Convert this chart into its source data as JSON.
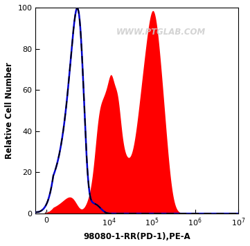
{
  "xlabel": "98080-1-RR(PD-1),PE-A",
  "ylabel": "Relative Cell Number",
  "ylim": [
    0,
    100
  ],
  "yticks": [
    0,
    20,
    40,
    60,
    80,
    100
  ],
  "watermark": "WWW.PTGLAB.COM",
  "background_color": "#ffffff",
  "blue_line_color": "#0000cc",
  "dashed_line_color": "#000000",
  "red_fill_color": "#ff0000",
  "linthresh": 500
}
